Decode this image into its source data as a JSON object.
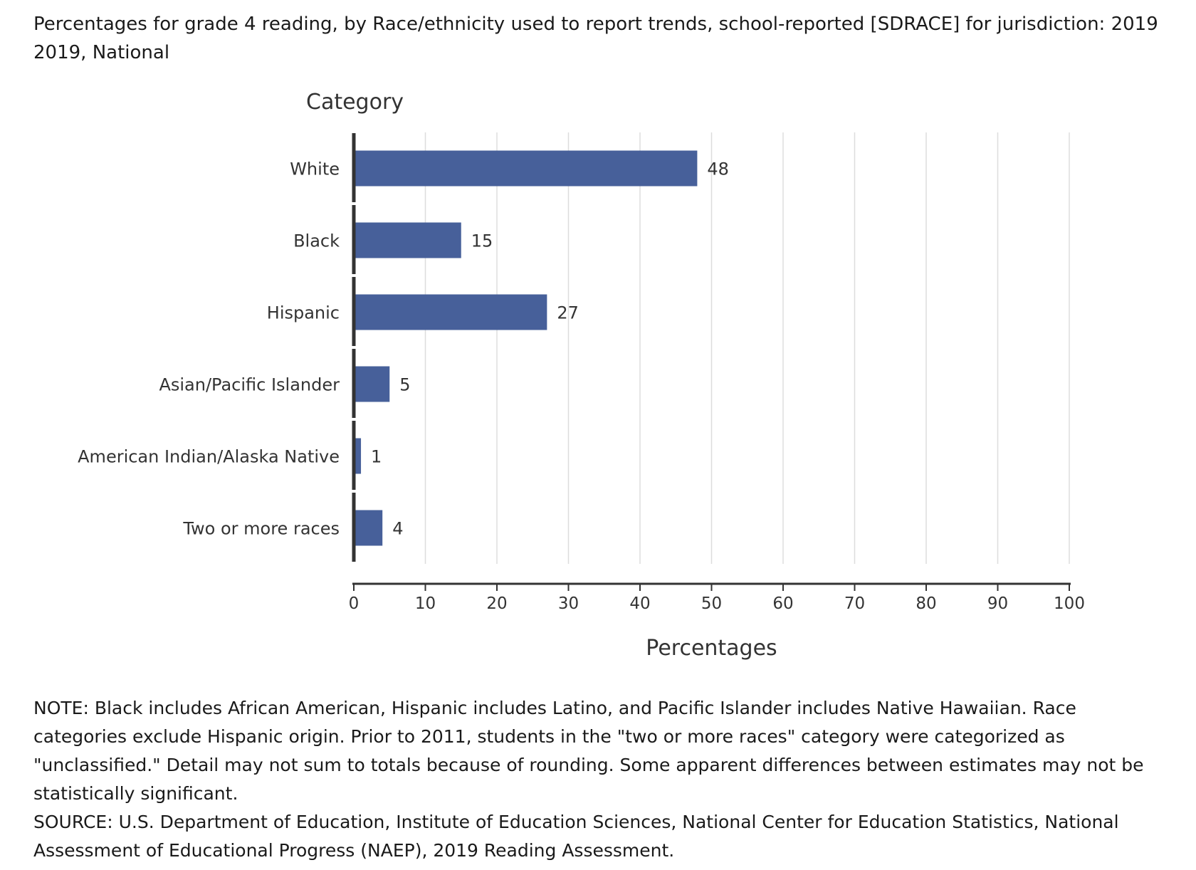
{
  "header": {
    "title_line1": "Percentages for grade 4 reading, by Race/ethnicity used to report trends, school-reported [SDRACE] for jurisdiction: 2019",
    "title_line2": "2019, National"
  },
  "chart_data": {
    "type": "bar",
    "orientation": "horizontal",
    "category_axis_title": "Category",
    "xlabel": "Percentages",
    "categories": [
      "White",
      "Black",
      "Hispanic",
      "Asian/Pacific Islander",
      "American Indian/Alaska Native",
      "Two or more races"
    ],
    "values": [
      48,
      15,
      27,
      5,
      1,
      4
    ],
    "data_labels": [
      "48",
      "15",
      "27",
      "5",
      "1",
      "4"
    ],
    "xlim": [
      0,
      100
    ],
    "xticks": [
      0,
      10,
      20,
      30,
      40,
      50,
      60,
      70,
      80,
      90,
      100
    ],
    "xtick_labels": [
      "0",
      "10",
      "20",
      "30",
      "40",
      "50",
      "60",
      "70",
      "80",
      "90",
      "100"
    ],
    "grid": "vertical",
    "legend": "none",
    "bar_color": "#47609a"
  },
  "footer": {
    "note_line1": "NOTE: Black includes African American, Hispanic includes Latino, and Pacific Islander includes Native Hawaiian. Race",
    "note_line2": "categories exclude Hispanic origin. Prior to 2011, students in the \"two or more races\" category were categorized as",
    "note_line3": "\"unclassified.\" Detail may not sum to totals because of rounding. Some apparent differences between estimates may not be",
    "note_line4": "statistically significant.",
    "source_line1": "SOURCE: U.S. Department of Education, Institute of Education Sciences, National Center for Education Statistics, National",
    "source_line2": "Assessment of Educational Progress (NAEP), 2019 Reading Assessment."
  }
}
